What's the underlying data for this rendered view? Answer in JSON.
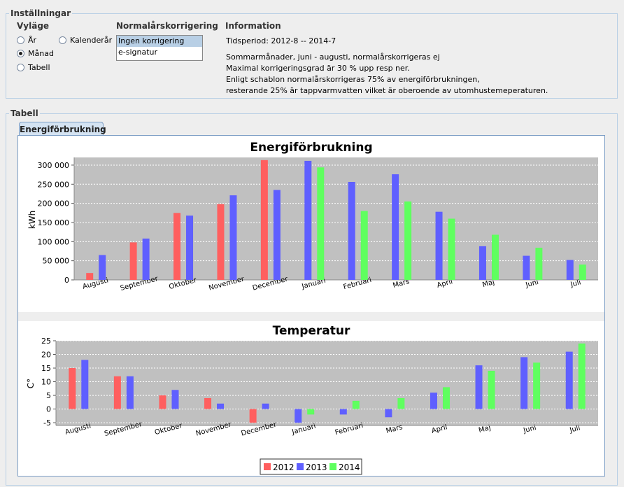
{
  "settings": {
    "legend": "Inställningar",
    "view": {
      "header": "Vyläge",
      "options": [
        {
          "label": "År",
          "selected": false
        },
        {
          "label": "Kalenderår",
          "selected": false
        },
        {
          "label": "Månad",
          "selected": true
        },
        {
          "label": "Tabell",
          "selected": false
        }
      ]
    },
    "normal": {
      "header": "Normalårskorrigering",
      "items": [
        {
          "label": "Ingen korrigering",
          "selected": true
        },
        {
          "label": "e-signatur",
          "selected": false
        }
      ]
    },
    "info": {
      "header": "Information",
      "period": "Tidsperiod:  2012-8 -- 2014-7",
      "lines": [
        "Sommarmånader, juni - augusti, normalårskorrigeras ej",
        "Maximal korrigeringsgrad är 30 % upp resp ner.",
        "Enligt schablon normalårskorrigeras 75% av energiförbrukningen,",
        "resterande 25% är tappvarmvatten vilket är oberoende av utomhustemeperaturen."
      ]
    }
  },
  "table": {
    "legend": "Tabell",
    "tab_label": "Energiförbrukning"
  },
  "colors": {
    "2012": "#ff5f5f",
    "2013": "#5f5fff",
    "2014": "#5fff5f",
    "plot_bg": "#c0c0c0"
  },
  "legend_labels": [
    "2012",
    "2013",
    "2014"
  ],
  "chart_data": [
    {
      "type": "bar",
      "title": "Energiförbrukning",
      "xlabel": "",
      "ylabel": "kWh",
      "ylim": [
        0,
        320000
      ],
      "yticks": [
        0,
        50000,
        100000,
        150000,
        200000,
        250000,
        300000
      ],
      "ytick_labels": [
        "0",
        "50 000",
        "100 000",
        "150 000",
        "200 000",
        "250 000",
        "300 000"
      ],
      "categories": [
        "Augusti",
        "September",
        "Oktober",
        "November",
        "December",
        "Januari",
        "Februari",
        "Mars",
        "April",
        "Maj",
        "Juni",
        "Juli"
      ],
      "series": [
        {
          "name": "2012",
          "values": [
            18000,
            98000,
            175000,
            198000,
            313000,
            null,
            null,
            null,
            null,
            null,
            null,
            null
          ]
        },
        {
          "name": "2013",
          "values": [
            65000,
            108000,
            168000,
            221000,
            235000,
            311000,
            256000,
            276000,
            178000,
            88000,
            63000,
            52000
          ]
        },
        {
          "name": "2014",
          "values": [
            null,
            null,
            null,
            null,
            null,
            294000,
            180000,
            205000,
            160000,
            118000,
            84000,
            40000
          ]
        }
      ]
    },
    {
      "type": "bar",
      "title": "Temperatur",
      "xlabel": "",
      "ylabel": "C°",
      "ylim": [
        -6,
        25
      ],
      "yticks": [
        -5,
        0,
        5,
        10,
        15,
        20,
        25
      ],
      "ytick_labels": [
        "-5",
        "0",
        "5",
        "10",
        "15",
        "20",
        "25"
      ],
      "categories": [
        "Augusti",
        "September",
        "Oktober",
        "November",
        "December",
        "Januari",
        "Februari",
        "Mars",
        "April",
        "Maj",
        "Juni",
        "Juli"
      ],
      "series": [
        {
          "name": "2012",
          "values": [
            15,
            12,
            5,
            4,
            -5,
            null,
            null,
            null,
            null,
            null,
            null,
            null
          ]
        },
        {
          "name": "2013",
          "values": [
            18,
            12,
            7,
            2,
            2,
            -5,
            -2,
            -3,
            6,
            16,
            19,
            21
          ]
        },
        {
          "name": "2014",
          "values": [
            null,
            null,
            null,
            null,
            null,
            -2,
            3,
            4,
            8,
            14,
            17,
            24
          ]
        }
      ]
    }
  ]
}
